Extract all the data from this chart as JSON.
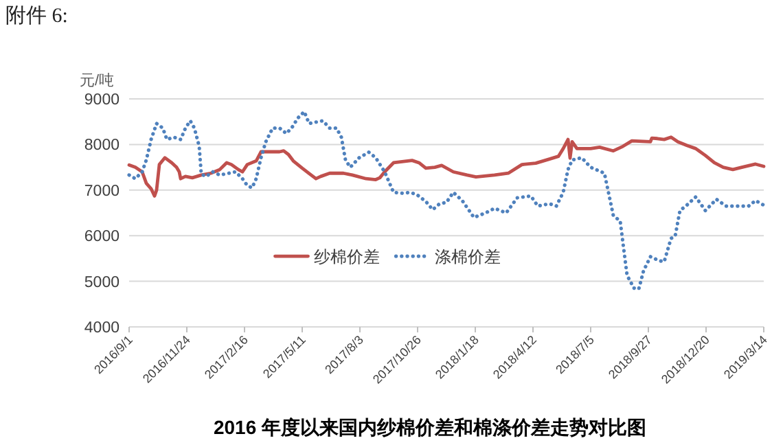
{
  "chart_data": {
    "type": "line",
    "title": "2016 年度以来国内纱棉价差和棉涤价差走势对比图",
    "ylabel": "元/吨",
    "annotations": [
      "附件 6:"
    ],
    "xlim": [
      "2016-09-01",
      "2019-03-14"
    ],
    "xticks": [
      {
        "value": "2016-09-01",
        "label": "2016/9/1"
      },
      {
        "value": "2016-11-24",
        "label": "2016/11/24"
      },
      {
        "value": "2017-02-16",
        "label": "2017/2/16"
      },
      {
        "value": "2017-05-11",
        "label": "2017/5/11"
      },
      {
        "value": "2017-08-03",
        "label": "2017/8/3"
      },
      {
        "value": "2017-10-26",
        "label": "2017/10/26"
      },
      {
        "value": "2018-01-18",
        "label": "2018/1/18"
      },
      {
        "value": "2018-04-12",
        "label": "2018/4/12"
      },
      {
        "value": "2018-07-05",
        "label": "2018/7/5"
      },
      {
        "value": "2018-09-27",
        "label": "2018/9/27"
      },
      {
        "value": "2018-12-20",
        "label": "2018/12/20"
      },
      {
        "value": "2019-03-14",
        "label": "2019/3/14"
      }
    ],
    "ylim": [
      4000,
      9000
    ],
    "yticks": [
      4000,
      5000,
      6000,
      7000,
      8000,
      9000
    ],
    "grid": "y",
    "legend": "center",
    "series": [
      {
        "name": "纱棉价差",
        "color": "#c0504d",
        "line_style": "solid",
        "x": [
          "2016-09-01",
          "2016-09-10",
          "2016-09-20",
          "2016-09-26",
          "2016-10-03",
          "2016-10-08",
          "2016-10-11",
          "2016-10-15",
          "2016-10-23",
          "2016-11-02",
          "2016-11-09",
          "2016-11-13",
          "2016-11-15",
          "2016-11-22",
          "2016-12-02",
          "2016-12-15",
          "2016-12-29",
          "2017-01-11",
          "2017-01-21",
          "2017-01-28",
          "2017-02-07",
          "2017-02-13",
          "2017-02-20",
          "2017-03-05",
          "2017-03-12",
          "2017-03-25",
          "2017-04-08",
          "2017-04-14",
          "2017-04-21",
          "2017-04-28",
          "2017-05-11",
          "2017-05-24",
          "2017-05-31",
          "2017-06-07",
          "2017-06-20",
          "2017-07-10",
          "2017-07-23",
          "2017-08-12",
          "2017-08-26",
          "2017-09-01",
          "2017-09-08",
          "2017-09-21",
          "2017-10-18",
          "2017-10-28",
          "2017-11-07",
          "2017-11-20",
          "2017-11-30",
          "2017-12-17",
          "2018-01-06",
          "2018-01-19",
          "2018-02-15",
          "2018-03-07",
          "2018-03-27",
          "2018-04-16",
          "2018-05-06",
          "2018-05-19",
          "2018-05-26",
          "2018-06-02",
          "2018-06-05",
          "2018-06-08",
          "2018-06-15",
          "2018-07-05",
          "2018-07-18",
          "2018-08-07",
          "2018-08-21",
          "2018-09-03",
          "2018-09-30",
          "2018-10-02",
          "2018-10-10",
          "2018-10-20",
          "2018-10-30",
          "2018-11-09",
          "2018-11-22",
          "2018-12-05",
          "2018-12-19",
          "2019-01-01",
          "2019-01-14",
          "2019-01-28",
          "2019-02-10",
          "2019-03-02",
          "2019-03-14"
        ],
        "values": [
          7550,
          7500,
          7400,
          7150,
          7030,
          6870,
          7000,
          7560,
          7710,
          7600,
          7500,
          7400,
          7250,
          7300,
          7270,
          7330,
          7370,
          7450,
          7600,
          7560,
          7450,
          7400,
          7560,
          7640,
          7840,
          7840,
          7840,
          7860,
          7780,
          7640,
          7480,
          7330,
          7250,
          7300,
          7370,
          7370,
          7330,
          7250,
          7230,
          7270,
          7400,
          7600,
          7650,
          7600,
          7480,
          7500,
          7540,
          7400,
          7330,
          7290,
          7330,
          7370,
          7560,
          7590,
          7680,
          7740,
          7910,
          8110,
          7700,
          8060,
          7910,
          7910,
          7940,
          7860,
          7960,
          8080,
          8060,
          8140,
          8130,
          8110,
          8160,
          8060,
          7980,
          7910,
          7760,
          7600,
          7500,
          7450,
          7500,
          7570,
          7520
        ]
      },
      {
        "name": "涤棉价差",
        "color": "#4f81bd",
        "line_style": "dotted",
        "x": [
          "2016-09-01",
          "2016-09-10",
          "2016-09-20",
          "2016-09-26",
          "2016-10-03",
          "2016-10-11",
          "2016-10-20",
          "2016-10-26",
          "2016-11-05",
          "2016-11-15",
          "2016-11-22",
          "2016-11-29",
          "2016-12-05",
          "2016-12-12",
          "2016-12-15",
          "2016-12-22",
          "2017-01-01",
          "2017-01-11",
          "2017-01-24",
          "2017-02-03",
          "2017-02-13",
          "2017-02-20",
          "2017-02-27",
          "2017-03-05",
          "2017-03-12",
          "2017-03-19",
          "2017-03-29",
          "2017-04-08",
          "2017-04-18",
          "2017-04-28",
          "2017-05-04",
          "2017-05-14",
          "2017-05-21",
          "2017-05-31",
          "2017-06-10",
          "2017-06-20",
          "2017-06-30",
          "2017-07-07",
          "2017-07-13",
          "2017-07-20",
          "2017-08-02",
          "2017-08-16",
          "2017-08-26",
          "2017-09-08",
          "2017-09-21",
          "2017-10-05",
          "2017-10-15",
          "2017-10-25",
          "2017-11-07",
          "2017-11-17",
          "2017-11-27",
          "2017-12-07",
          "2017-12-17",
          "2017-12-30",
          "2018-01-16",
          "2018-02-02",
          "2018-02-15",
          "2018-03-04",
          "2018-03-20",
          "2018-04-09",
          "2018-04-19",
          "2018-05-06",
          "2018-05-16",
          "2018-05-26",
          "2018-06-02",
          "2018-06-08",
          "2018-06-22",
          "2018-07-05",
          "2018-07-25",
          "2018-08-07",
          "2018-08-17",
          "2018-08-21",
          "2018-08-27",
          "2018-09-06",
          "2018-09-13",
          "2018-09-20",
          "2018-09-30",
          "2018-10-13",
          "2018-10-20",
          "2018-10-30",
          "2018-11-05",
          "2018-11-12",
          "2018-11-22",
          "2018-12-05",
          "2018-12-19",
          "2019-01-04",
          "2019-01-18",
          "2019-02-03",
          "2019-02-20",
          "2019-03-02",
          "2019-03-14"
        ],
        "values": [
          7330,
          7250,
          7400,
          7660,
          8110,
          8460,
          8360,
          8110,
          8160,
          8110,
          8360,
          8520,
          8360,
          7960,
          7350,
          7300,
          7400,
          7330,
          7370,
          7400,
          7250,
          7100,
          7050,
          7250,
          7710,
          8060,
          8360,
          8360,
          8240,
          8410,
          8570,
          8720,
          8460,
          8490,
          8520,
          8360,
          8360,
          8160,
          7660,
          7500,
          7710,
          7830,
          7710,
          7400,
          6950,
          6930,
          6950,
          6900,
          6750,
          6570,
          6700,
          6730,
          6950,
          6770,
          6400,
          6500,
          6600,
          6500,
          6830,
          6870,
          6650,
          6700,
          6650,
          6950,
          7450,
          7660,
          7710,
          7500,
          7370,
          6440,
          6320,
          5840,
          5130,
          4850,
          4830,
          5230,
          5540,
          5450,
          5430,
          5940,
          5990,
          6550,
          6670,
          6850,
          6550,
          6800,
          6650,
          6650,
          6650,
          6770,
          6670
        ]
      }
    ]
  }
}
